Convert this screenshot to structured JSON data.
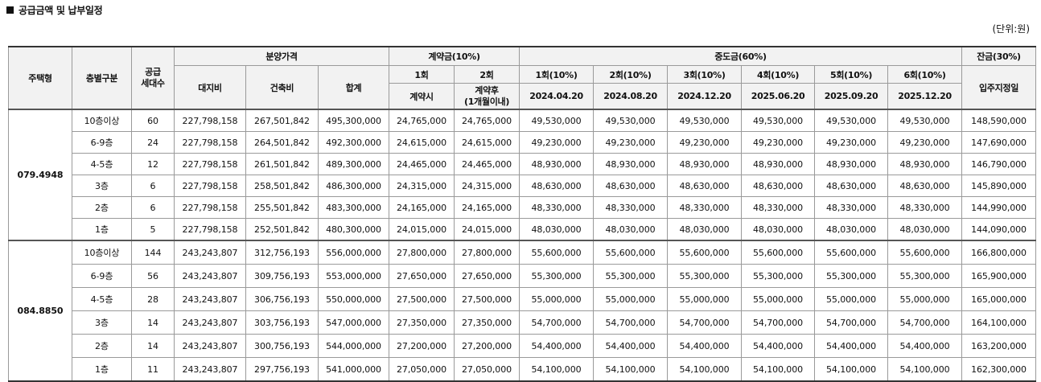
{
  "title": "공급금액 및 납부일정",
  "unit": "(단위:원)",
  "header": {
    "type": "주택형",
    "floor": "층별구분",
    "units": "공급\n세대수",
    "sale_price": "분양가격",
    "land": "대지비",
    "building": "건축비",
    "total": "합계",
    "deposit": "계약금(10%)",
    "dep1": "1회",
    "dep2": "2회",
    "dep1_when": "계약시",
    "dep2_when": "계약후\n(1개월이내)",
    "middle": "중도금(60%)",
    "mid_labels": [
      "1회(10%)",
      "2회(10%)",
      "3회(10%)",
      "4회(10%)",
      "5회(10%)",
      "6회(10%)"
    ],
    "mid_dates": [
      "2024.04.20",
      "2024.08.20",
      "2024.12.20",
      "2025.06.20",
      "2025.09.20",
      "2025.12.20"
    ],
    "balance": "잔금(30%)",
    "balance_when": "입주지정일"
  },
  "groups": [
    {
      "type": "079.4948",
      "rows": [
        {
          "floor": "10층이상",
          "units": "60",
          "land": "227,798,158",
          "building": "267,501,842",
          "total": "495,300,000",
          "d1": "24,765,000",
          "d2": "24,765,000",
          "mid": "49,530,000",
          "bal": "148,590,000"
        },
        {
          "floor": "6-9층",
          "units": "24",
          "land": "227,798,158",
          "building": "264,501,842",
          "total": "492,300,000",
          "d1": "24,615,000",
          "d2": "24,615,000",
          "mid": "49,230,000",
          "bal": "147,690,000"
        },
        {
          "floor": "4-5층",
          "units": "12",
          "land": "227,798,158",
          "building": "261,501,842",
          "total": "489,300,000",
          "d1": "24,465,000",
          "d2": "24,465,000",
          "mid": "48,930,000",
          "bal": "146,790,000"
        },
        {
          "floor": "3층",
          "units": "6",
          "land": "227,798,158",
          "building": "258,501,842",
          "total": "486,300,000",
          "d1": "24,315,000",
          "d2": "24,315,000",
          "mid": "48,630,000",
          "bal": "145,890,000"
        },
        {
          "floor": "2층",
          "units": "6",
          "land": "227,798,158",
          "building": "255,501,842",
          "total": "483,300,000",
          "d1": "24,165,000",
          "d2": "24,165,000",
          "mid": "48,330,000",
          "bal": "144,990,000"
        },
        {
          "floor": "1층",
          "units": "5",
          "land": "227,798,158",
          "building": "252,501,842",
          "total": "480,300,000",
          "d1": "24,015,000",
          "d2": "24,015,000",
          "mid": "48,030,000",
          "bal": "144,090,000"
        }
      ]
    },
    {
      "type": "084.8850",
      "rows": [
        {
          "floor": "10층이상",
          "units": "144",
          "land": "243,243,807",
          "building": "312,756,193",
          "total": "556,000,000",
          "d1": "27,800,000",
          "d2": "27,800,000",
          "mid": "55,600,000",
          "bal": "166,800,000"
        },
        {
          "floor": "6-9층",
          "units": "56",
          "land": "243,243,807",
          "building": "309,756,193",
          "total": "553,000,000",
          "d1": "27,650,000",
          "d2": "27,650,000",
          "mid": "55,300,000",
          "bal": "165,900,000"
        },
        {
          "floor": "4-5층",
          "units": "28",
          "land": "243,243,807",
          "building": "306,756,193",
          "total": "550,000,000",
          "d1": "27,500,000",
          "d2": "27,500,000",
          "mid": "55,000,000",
          "bal": "165,000,000"
        },
        {
          "floor": "3층",
          "units": "14",
          "land": "243,243,807",
          "building": "303,756,193",
          "total": "547,000,000",
          "d1": "27,350,000",
          "d2": "27,350,000",
          "mid": "54,700,000",
          "bal": "164,100,000"
        },
        {
          "floor": "2층",
          "units": "14",
          "land": "243,243,807",
          "building": "300,756,193",
          "total": "544,000,000",
          "d1": "27,200,000",
          "d2": "27,200,000",
          "mid": "54,400,000",
          "bal": "163,200,000"
        },
        {
          "floor": "1층",
          "units": "11",
          "land": "243,243,807",
          "building": "297,756,193",
          "total": "541,000,000",
          "d1": "27,050,000",
          "d2": "27,050,000",
          "mid": "54,100,000",
          "bal": "162,300,000"
        }
      ]
    }
  ]
}
